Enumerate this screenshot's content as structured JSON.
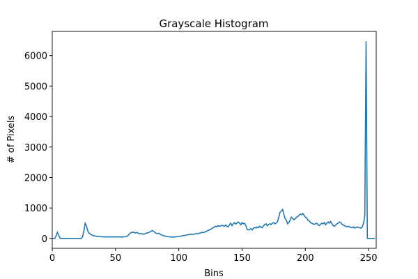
{
  "chart_data": {
    "type": "line",
    "title": "Grayscale Histogram",
    "x_label": "Bins",
    "y_label": "# of Pixels",
    "x": [
      0,
      1,
      2,
      3,
      4,
      5,
      6,
      7,
      8,
      9,
      10,
      11,
      12,
      13,
      14,
      15,
      16,
      17,
      18,
      19,
      20,
      21,
      22,
      23,
      24,
      25,
      26,
      27,
      28,
      29,
      30,
      31,
      32,
      33,
      34,
      35,
      36,
      37,
      38,
      39,
      40,
      41,
      42,
      43,
      44,
      45,
      46,
      47,
      48,
      49,
      50,
      51,
      52,
      53,
      54,
      55,
      56,
      57,
      58,
      59,
      60,
      61,
      62,
      63,
      64,
      65,
      66,
      67,
      68,
      69,
      70,
      71,
      72,
      73,
      74,
      75,
      76,
      77,
      78,
      79,
      80,
      81,
      82,
      83,
      84,
      85,
      86,
      87,
      88,
      89,
      90,
      91,
      92,
      93,
      94,
      95,
      96,
      97,
      98,
      99,
      100,
      101,
      102,
      103,
      104,
      105,
      106,
      107,
      108,
      109,
      110,
      111,
      112,
      113,
      114,
      115,
      116,
      117,
      118,
      119,
      120,
      121,
      122,
      123,
      124,
      125,
      126,
      127,
      128,
      129,
      130,
      131,
      132,
      133,
      134,
      135,
      136,
      137,
      138,
      139,
      140,
      141,
      142,
      143,
      144,
      145,
      146,
      147,
      148,
      149,
      150,
      151,
      152,
      153,
      154,
      155,
      156,
      157,
      158,
      159,
      160,
      161,
      162,
      163,
      164,
      165,
      166,
      167,
      168,
      169,
      170,
      171,
      172,
      173,
      174,
      175,
      176,
      177,
      178,
      179,
      180,
      181,
      182,
      183,
      184,
      185,
      186,
      187,
      188,
      189,
      190,
      191,
      192,
      193,
      194,
      195,
      196,
      197,
      198,
      199,
      200,
      201,
      202,
      203,
      204,
      205,
      206,
      207,
      208,
      209,
      210,
      211,
      212,
      213,
      214,
      215,
      216,
      217,
      218,
      219,
      220,
      221,
      222,
      223,
      224,
      225,
      226,
      227,
      228,
      229,
      230,
      231,
      232,
      233,
      234,
      235,
      236,
      237,
      238,
      239,
      240,
      241,
      242,
      243,
      244,
      245,
      246,
      247,
      248,
      249,
      250,
      251,
      252,
      253,
      254,
      255
    ],
    "series": [
      {
        "color": "#1f77b4",
        "values": [
          0,
          0,
          0,
          80,
          200,
          120,
          20,
          0,
          0,
          0,
          0,
          0,
          0,
          0,
          0,
          0,
          0,
          0,
          0,
          0,
          0,
          0,
          0,
          0,
          60,
          250,
          500,
          420,
          250,
          180,
          140,
          120,
          100,
          90,
          80,
          70,
          65,
          60,
          60,
          55,
          55,
          50,
          50,
          55,
          50,
          50,
          50,
          55,
          50,
          50,
          55,
          50,
          50,
          55,
          50,
          45,
          50,
          55,
          60,
          70,
          100,
          150,
          190,
          200,
          210,
          190,
          180,
          200,
          170,
          150,
          160,
          150,
          140,
          150,
          170,
          180,
          190,
          210,
          230,
          260,
          240,
          200,
          170,
          160,
          170,
          150,
          120,
          100,
          90,
          80,
          70,
          60,
          55,
          50,
          50,
          50,
          45,
          50,
          55,
          60,
          60,
          70,
          80,
          90,
          100,
          100,
          110,
          120,
          130,
          130,
          140,
          130,
          140,
          150,
          160,
          150,
          170,
          180,
          200,
          190,
          200,
          220,
          240,
          260,
          280,
          300,
          320,
          350,
          380,
          400,
          380,
          420,
          400,
          410,
          430,
          420,
          400,
          440,
          400,
          380,
          450,
          500,
          420,
          480,
          520,
          470,
          500,
          540,
          500,
          450,
          520,
          480,
          500,
          420,
          300,
          280,
          300,
          320,
          280,
          340,
          360,
          340,
          380,
          350,
          400,
          370,
          350,
          420,
          460,
          480,
          420,
          460,
          480,
          460,
          500,
          520,
          480,
          500,
          550,
          700,
          850,
          900,
          950,
          800,
          650,
          600,
          480,
          520,
          600,
          700,
          650,
          620,
          640,
          700,
          720,
          760,
          800,
          780,
          820,
          760,
          700,
          680,
          600,
          580,
          520,
          500,
          480,
          460,
          480,
          500,
          450,
          420,
          460,
          500,
          480,
          520,
          450,
          500,
          540,
          500,
          560,
          480,
          420,
          400,
          440,
          480,
          500,
          540,
          520,
          460,
          440,
          420,
          400,
          380,
          400,
          380,
          360,
          350,
          380,
          340,
          360,
          380,
          360,
          350,
          340,
          380,
          500,
          750,
          6470,
          0,
          0,
          0,
          0,
          0,
          0,
          0
        ]
      }
    ],
    "xlim": [
      0,
      256
    ],
    "ylim": [
      -323.5,
      6793.5
    ],
    "xticks": [
      0,
      50,
      100,
      150,
      200,
      250
    ],
    "yticks": [
      0,
      1000,
      2000,
      3000,
      4000,
      5000,
      6000
    ]
  }
}
